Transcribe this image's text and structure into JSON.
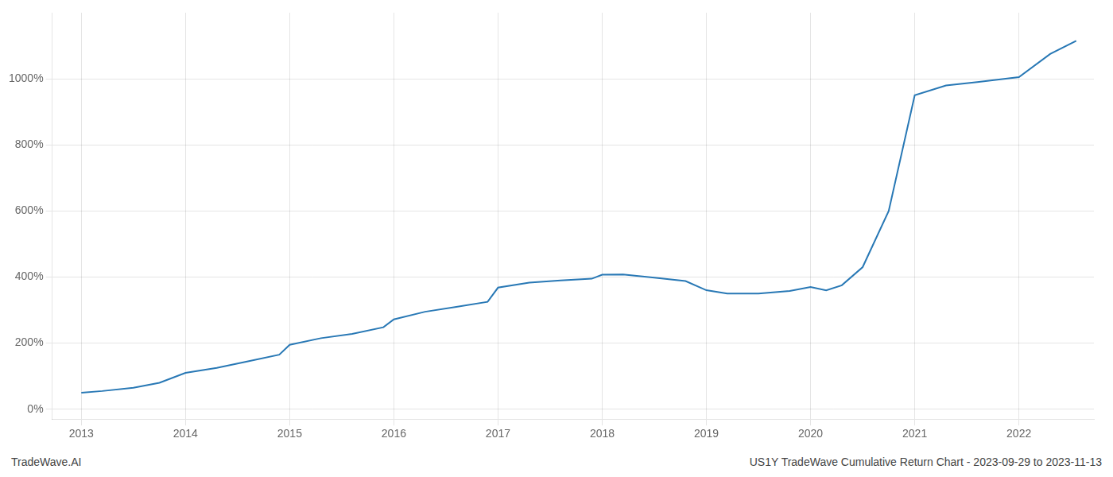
{
  "chart_data": {
    "type": "line",
    "x": [
      2013.0,
      2013.2,
      2013.5,
      2013.75,
      2014.0,
      2014.3,
      2014.6,
      2014.9,
      2015.0,
      2015.3,
      2015.6,
      2015.9,
      2016.0,
      2016.3,
      2016.6,
      2016.9,
      2017.0,
      2017.3,
      2017.6,
      2017.9,
      2018.0,
      2018.2,
      2018.5,
      2018.8,
      2019.0,
      2019.2,
      2019.5,
      2019.8,
      2020.0,
      2020.15,
      2020.3,
      2020.5,
      2020.75,
      2021.0,
      2021.3,
      2021.6,
      2022.0,
      2022.3,
      2022.55
    ],
    "values": [
      50,
      55,
      65,
      80,
      110,
      125,
      145,
      165,
      195,
      215,
      228,
      248,
      272,
      295,
      310,
      325,
      368,
      383,
      390,
      395,
      407,
      408,
      398,
      388,
      360,
      350,
      350,
      358,
      370,
      360,
      375,
      430,
      600,
      950,
      980,
      990,
      1005,
      1075,
      1115
    ],
    "color": "#2878b5",
    "xlim": [
      2012.72,
      2022.72
    ],
    "xticks": [
      2013,
      2014,
      2015,
      2016,
      2017,
      2018,
      2019,
      2020,
      2021,
      2022
    ],
    "ylim": [
      -30,
      1200
    ],
    "yticks": [
      {
        "value": 0,
        "label": "0%"
      },
      {
        "value": 200,
        "label": "200%"
      },
      {
        "value": 400,
        "label": "400%"
      },
      {
        "value": 600,
        "label": "600%"
      },
      {
        "value": 800,
        "label": "800%"
      },
      {
        "value": 1000,
        "label": "1000%"
      }
    ],
    "grid": true,
    "annotations": [
      "TradeWave.AI",
      "US1Y TradeWave Cumulative Return Chart - 2023-09-29 to 2023-11-13"
    ]
  }
}
